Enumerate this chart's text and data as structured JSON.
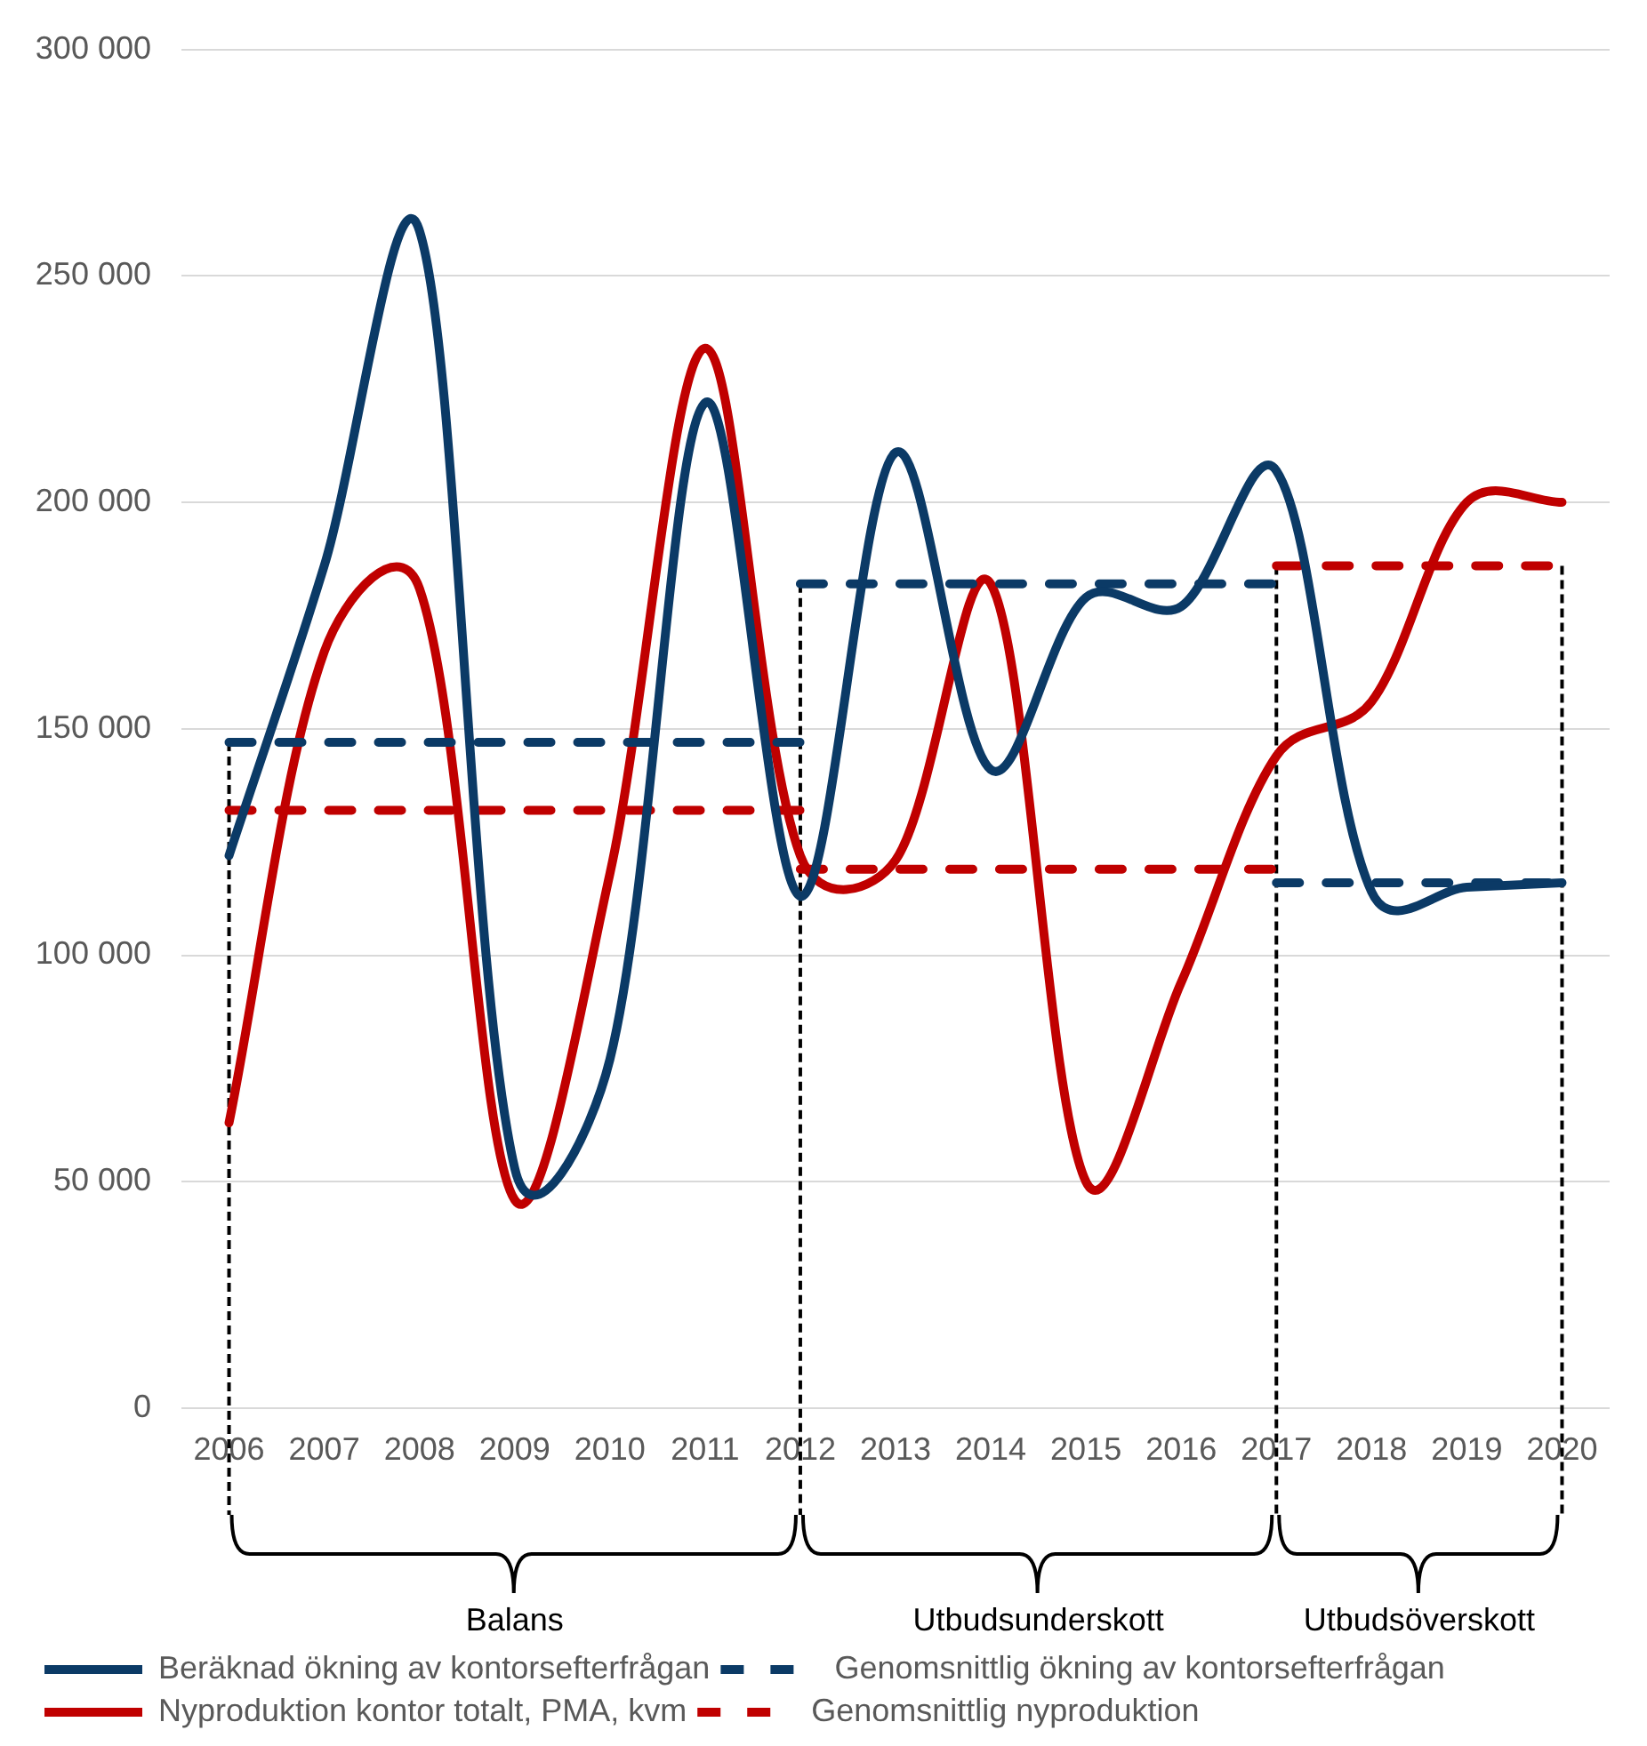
{
  "chart_data": {
    "type": "line",
    "categories": [
      "2006",
      "2007",
      "2008",
      "2009",
      "2010",
      "2011",
      "2012",
      "2013",
      "2014",
      "2015",
      "2016",
      "2017",
      "2018",
      "2019",
      "2020"
    ],
    "series": [
      {
        "name": "Beräknad ökning av kontorsefterfrågan",
        "color": "#0b3a66",
        "line_style": "solid",
        "values": [
          122000,
          186000,
          260000,
          53000,
          77000,
          222000,
          113000,
          211000,
          141000,
          179000,
          177000,
          207000,
          114000,
          115000,
          116000
        ]
      },
      {
        "name": "Genomsnittlig ökning av kontorsefterfrågan",
        "color": "#0b3a66",
        "line_style": "dashed",
        "values": [
          147000,
          147000,
          147000,
          147000,
          147000,
          147000,
          147000,
          null,
          null,
          null,
          null,
          null,
          null,
          null,
          null
        ]
      },
      {
        "color": "#0b3a66",
        "line_style": "dashed",
        "values": [
          null,
          null,
          null,
          null,
          null,
          null,
          182000,
          182000,
          182000,
          182000,
          182000,
          182000,
          null,
          null,
          null
        ]
      },
      {
        "color": "#0b3a66",
        "line_style": "dashed",
        "values": [
          null,
          null,
          null,
          null,
          null,
          null,
          null,
          null,
          null,
          null,
          null,
          116000,
          116000,
          116000,
          116000
        ]
      },
      {
        "name": "Nyproduktion kontor totalt, PMA, kvm",
        "color": "#c00000",
        "line_style": "solid",
        "values": [
          63000,
          167000,
          181000,
          46000,
          118000,
          234000,
          122000,
          121000,
          182000,
          50000,
          94000,
          144000,
          156000,
          200000,
          200000
        ]
      },
      {
        "name": "Genomsnittlig nyproduktion",
        "color": "#c00000",
        "line_style": "dashed",
        "values": [
          132000,
          132000,
          132000,
          132000,
          132000,
          132000,
          132000,
          null,
          null,
          null,
          null,
          null,
          null,
          null,
          null
        ]
      },
      {
        "color": "#c00000",
        "line_style": "dashed",
        "values": [
          null,
          null,
          null,
          null,
          null,
          null,
          119000,
          119000,
          119000,
          119000,
          119000,
          119000,
          null,
          null,
          null
        ]
      },
      {
        "color": "#c00000",
        "line_style": "dashed",
        "values": [
          null,
          null,
          null,
          null,
          null,
          null,
          null,
          null,
          null,
          null,
          null,
          186000,
          186000,
          186000,
          186000
        ]
      }
    ],
    "ylim": [
      0,
      300000
    ],
    "yticks": [
      0,
      {
        "value": 50000,
        "label": "50 000"
      },
      {
        "value": 100000,
        "label": "100 000"
      },
      {
        "value": 150000,
        "label": "150 000"
      },
      {
        "value": 200000,
        "label": "200 000"
      },
      {
        "value": 250000,
        "label": "250 000"
      },
      {
        "value": 300000,
        "label": "300 000"
      }
    ],
    "ref_lines": [
      {
        "axis": "x",
        "value": "2006",
        "color": "#000000",
        "line_style": "dashed"
      },
      {
        "axis": "x",
        "value": "2012",
        "color": "#000000",
        "line_style": "dashed"
      },
      {
        "axis": "x",
        "value": "2017",
        "color": "#000000",
        "line_style": "dashed"
      },
      {
        "axis": "x",
        "value": "2020",
        "color": "#000000",
        "line_style": "dashed"
      }
    ],
    "annotations": [
      "Balans",
      "Utbudsunderskott",
      "Utbudsöverskott"
    ],
    "grid": "y",
    "legend": "bottom"
  }
}
